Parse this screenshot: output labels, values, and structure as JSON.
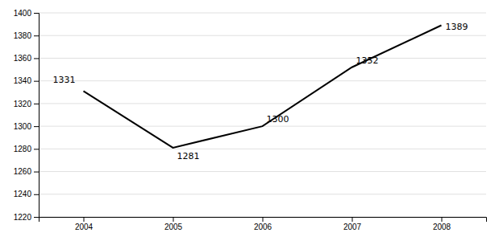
{
  "chart_data": {
    "type": "line",
    "x": [
      2004,
      2005,
      2006,
      2007,
      2008
    ],
    "values": [
      1331,
      1281,
      1300,
      1352,
      1389
    ],
    "color": "#000000",
    "xlim": [
      2003.5,
      2008.5
    ],
    "xticks": [
      2004,
      2005,
      2006,
      2007,
      2008
    ],
    "ylim": [
      1220,
      1400
    ],
    "yticks": [
      1220,
      1240,
      1260,
      1280,
      1300,
      1320,
      1340,
      1360,
      1380,
      1400
    ],
    "grid": true,
    "data_labels": true
  }
}
